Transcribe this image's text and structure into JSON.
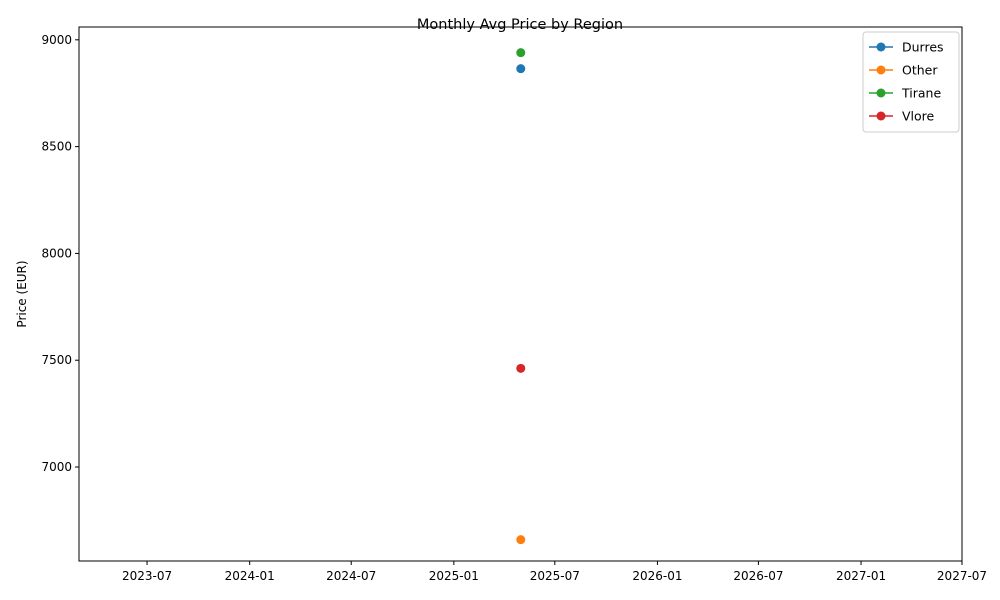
{
  "chart_data": {
    "type": "line",
    "title": "Monthly Avg Price by Region",
    "xlabel": "",
    "ylabel": "Price (EUR)",
    "x_type": "date",
    "xlim": [
      "2023-03-01",
      "2027-07-01"
    ],
    "ylim": [
      6560,
      9060
    ],
    "x_ticks": [
      "2023-07",
      "2024-01",
      "2024-07",
      "2025-01",
      "2025-07",
      "2026-01",
      "2026-07",
      "2027-01",
      "2027-07"
    ],
    "y_ticks": [
      7000,
      7500,
      8000,
      8500,
      9000
    ],
    "grid": false,
    "legend_position": "top-right",
    "marker": "circle",
    "series": [
      {
        "name": "Durres",
        "color": "#1f77b4",
        "x": [
          "2025-05-01"
        ],
        "values": [
          8865
        ]
      },
      {
        "name": "Other",
        "color": "#ff7f0e",
        "x": [
          "2025-05-01"
        ],
        "values": [
          6660
        ]
      },
      {
        "name": "Tirane",
        "color": "#2ca02c",
        "x": [
          "2025-05-01"
        ],
        "values": [
          8940
        ]
      },
      {
        "name": "Vlore",
        "color": "#d62728",
        "x": [
          "2025-05-01"
        ],
        "values": [
          7462
        ]
      }
    ]
  }
}
